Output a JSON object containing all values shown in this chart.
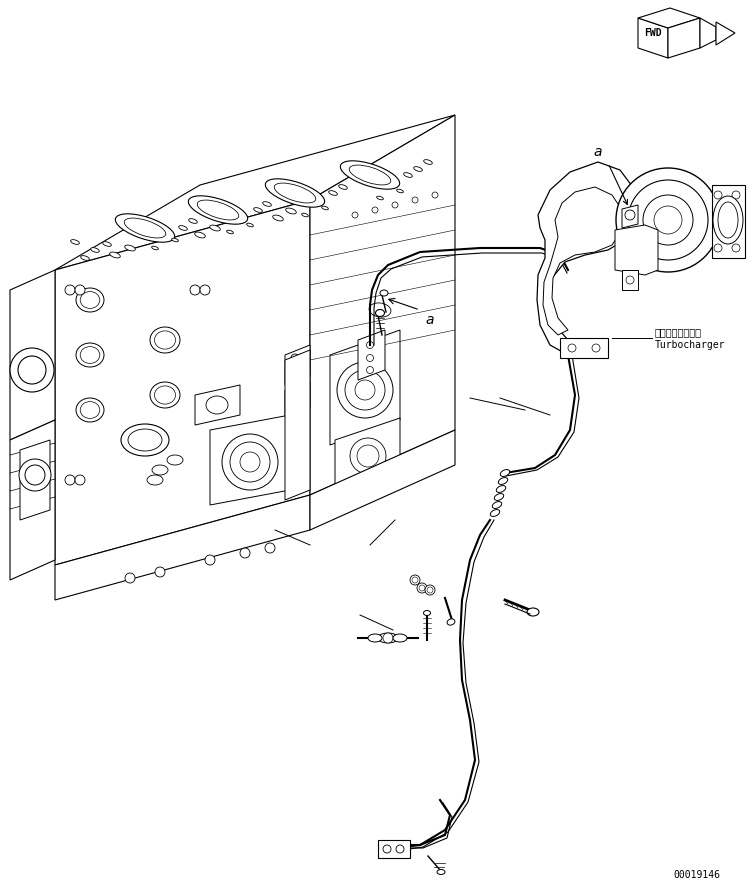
{
  "background_color": "#ffffff",
  "line_color": "#000000",
  "fig_width": 7.52,
  "fig_height": 8.89,
  "dpi": 100,
  "fwd_label": "FWD",
  "turbo_label_jp": "ターボチャージャ",
  "turbo_label_en": "Turbocharger",
  "drawing_number": "00019146",
  "font_size_small": 7,
  "font_size_label": 9,
  "font_size_drawing": 7
}
